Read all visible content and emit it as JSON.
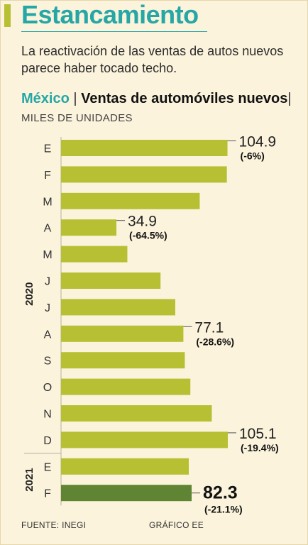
{
  "title": "Estancamiento",
  "subtitle": "La reactivación de las ventas de autos nuevos parece haber tocado techo.",
  "heading": {
    "country": "México",
    "separator": "|",
    "main": "Ventas de automóviles nuevos",
    "units_separator": "|",
    "units": "MILES DE UNIDADES"
  },
  "colors": {
    "bar": "#b7c033",
    "bar_highlight": "#5f8534",
    "accent": "#26a7a6"
  },
  "chart_data": {
    "type": "bar",
    "orientation": "horizontal",
    "title": "Ventas de automóviles nuevos",
    "ylabel": "MILES DE UNIDADES",
    "categories": [
      "E",
      "F",
      "M",
      "A",
      "M",
      "J",
      "J",
      "A",
      "S",
      "O",
      "N",
      "D",
      "E",
      "F"
    ],
    "year_groups": [
      {
        "label": "2020",
        "start": 0,
        "end": 11
      },
      {
        "label": "2021",
        "start": 12,
        "end": 13
      }
    ],
    "values": [
      104.9,
      104.5,
      87.4,
      34.9,
      41.8,
      62.7,
      72.0,
      77.1,
      78.0,
      81.5,
      95.0,
      105.1,
      80.5,
      82.3
    ],
    "annotations": [
      {
        "index": 0,
        "value_text": "104.9",
        "pct_text": "(-6%)",
        "highlight": false
      },
      {
        "index": 3,
        "value_text": "34.9",
        "pct_text": "(-64.5%)",
        "highlight": false
      },
      {
        "index": 7,
        "value_text": "77.1",
        "pct_text": "(-28.6%)",
        "highlight": false
      },
      {
        "index": 11,
        "value_text": "105.1",
        "pct_text": "(-19.4%)",
        "highlight": false
      },
      {
        "index": 13,
        "value_text": "82.3",
        "pct_text": "(-21.1%)",
        "highlight": true
      }
    ],
    "highlight_index": 13,
    "xlim": [
      0,
      105.1
    ],
    "grid": false,
    "legend": "none"
  },
  "footer": {
    "source": "FUENTE: INEGI",
    "credit": "GRÁFICO EE"
  }
}
